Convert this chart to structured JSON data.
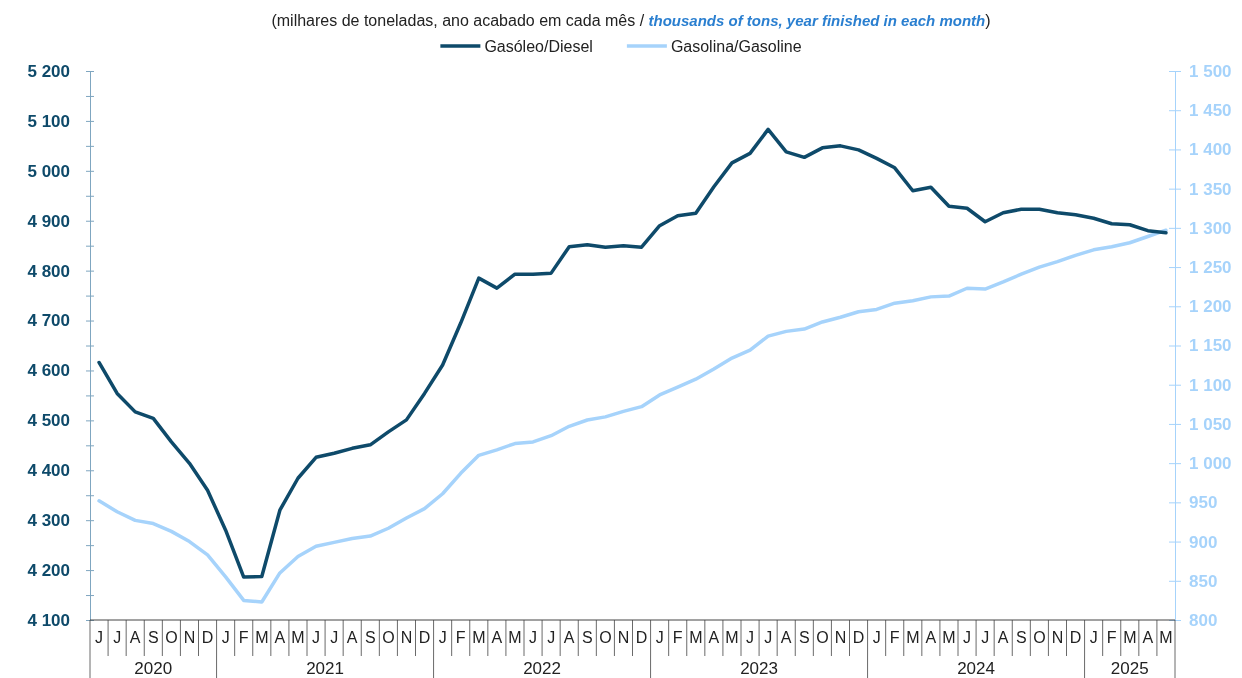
{
  "chart_data": {
    "type": "line",
    "subtitle": "(milhares de toneladas,  ano acabado em cada mês / thousands of tons, year finished in each month)",
    "categories": [
      "J",
      "J",
      "A",
      "S",
      "O",
      "N",
      "D",
      "J",
      "F",
      "M",
      "A",
      "M",
      "J",
      "J",
      "A",
      "S",
      "O",
      "N",
      "D",
      "J",
      "F",
      "M",
      "A",
      "M",
      "J",
      "J",
      "A",
      "S",
      "O",
      "N",
      "D",
      "J",
      "F",
      "M",
      "A",
      "M",
      "J",
      "J",
      "A",
      "S",
      "O",
      "N",
      "D",
      "J",
      "F",
      "M",
      "A",
      "M",
      "J",
      "J",
      "A",
      "S",
      "O",
      "N",
      "D",
      "J",
      "F",
      "M",
      "A",
      "M"
    ],
    "x2lim": [
      2019.9167,
      2024.9167
    ],
    "x2ticks": [
      {
        "value": 2020.208,
        "label": "2020"
      },
      2021,
      2022,
      2023,
      2024,
      {
        "value": 2024.708,
        "label": "2025"
      }
    ],
    "ylim": [
      4100,
      5200
    ],
    "yticks": [
      {
        "value": 4100,
        "label": "4 100"
      },
      {
        "value": 4150,
        "label": null
      },
      {
        "value": 4200,
        "label": "4 200"
      },
      {
        "value": 4250,
        "label": null
      },
      {
        "value": 4300,
        "label": "4 300"
      },
      {
        "value": 4350,
        "label": null
      },
      {
        "value": 4400,
        "label": "4 400"
      },
      {
        "value": 4450,
        "label": null
      },
      {
        "value": 4500,
        "label": "4 500"
      },
      {
        "value": 4550,
        "label": null
      },
      {
        "value": 4600,
        "label": "4 600"
      },
      {
        "value": 4650,
        "label": null
      },
      {
        "value": 4700,
        "label": "4 700"
      },
      {
        "value": 4750,
        "label": null
      },
      {
        "value": 4800,
        "label": "4 800"
      },
      {
        "value": 4850,
        "label": null
      },
      {
        "value": 4900,
        "label": "4 900"
      },
      {
        "value": 4950,
        "label": null
      },
      {
        "value": 5000,
        "label": "5 000"
      },
      {
        "value": 5050,
        "label": null
      },
      {
        "value": 5100,
        "label": "5 100"
      },
      {
        "value": 5150,
        "label": null
      },
      {
        "value": 5200,
        "label": "5 200"
      }
    ],
    "y2lim": [
      800,
      1500
    ],
    "y2ticks": [
      800,
      850,
      900,
      950,
      {
        "value": 1000,
        "label": "1 000"
      },
      {
        "value": 1050,
        "label": "1 050"
      },
      {
        "value": 1100,
        "label": "1 100"
      },
      {
        "value": 1150,
        "label": "1 150"
      },
      {
        "value": 1200,
        "label": "1 200"
      },
      {
        "value": 1250,
        "label": "1 250"
      },
      {
        "value": 1300,
        "label": "1 300"
      },
      {
        "value": 1350,
        "label": "1 350"
      },
      {
        "value": 1400,
        "label": "1 400"
      },
      {
        "value": 1450,
        "label": "1 450"
      },
      {
        "value": 1500,
        "label": "1 500"
      }
    ],
    "series": [
      {
        "name": "Gasóleo/Diesel",
        "color": "#0e4a6a",
        "values": [
          4616,
          4554,
          4517,
          4504,
          4457,
          4414,
          4360,
          4280,
          4186,
          4187,
          4320,
          4384,
          4426,
          4434,
          4444,
          4451,
          4477,
          4501,
          4554,
          4611,
          4695,
          4785,
          4765,
          4793,
          4793,
          4795,
          4848,
          4852,
          4847,
          4850,
          4847,
          4890,
          4910,
          4915,
          4968,
          5016,
          5035,
          5083,
          5038,
          5027,
          5046,
          5050,
          5042,
          5025,
          5006,
          4960,
          4967,
          4929,
          4925,
          4898,
          4916,
          4923,
          4923,
          4916,
          4912,
          4905,
          4894,
          4892,
          4880,
          4876
        ]
      },
      {
        "name": "Gasolina/Gasoline",
        "color": "#a6d3fb",
        "axis": "y2",
        "values": [
          952,
          938,
          927,
          923,
          913,
          900,
          883,
          855,
          825,
          823,
          860,
          881,
          894,
          899,
          904,
          907,
          917,
          930,
          942,
          961,
          987,
          1010,
          1017,
          1025,
          1027,
          1035,
          1047,
          1055,
          1059,
          1066,
          1072,
          1087,
          1097,
          1107,
          1120,
          1134,
          1144,
          1162,
          1168,
          1171,
          1180,
          1186,
          1193,
          1196,
          1204,
          1207,
          1212,
          1213,
          1223,
          1222,
          1231,
          1241,
          1250,
          1257,
          1265,
          1272,
          1276,
          1281,
          1289,
          1297
        ]
      }
    ],
    "legend": "top",
    "grid": false,
    "line_style": "solid",
    "marker": "none"
  }
}
